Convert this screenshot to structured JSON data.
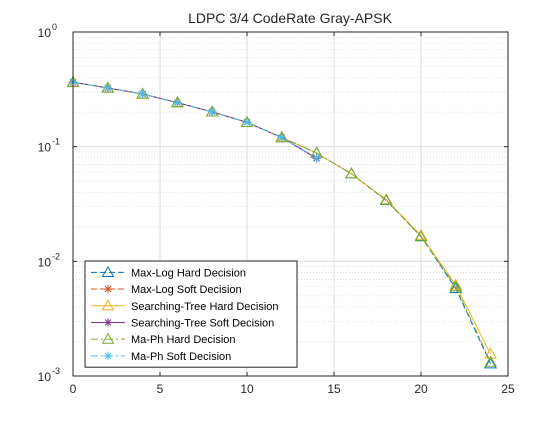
{
  "chart_data": {
    "type": "line",
    "title": "LDPC 3/4 CodeRate Gray-APSK",
    "xlabel": "",
    "ylabel": "",
    "xlim": [
      0,
      25
    ],
    "ylim": [
      0.001,
      1
    ],
    "yscale": "log",
    "grid": true,
    "minor_grid": true,
    "legend_position": "bottom-left",
    "x_ticks": [
      {
        "value": 0,
        "label": "0"
      },
      {
        "value": 5,
        "label": "5"
      },
      {
        "value": 10,
        "label": "10"
      },
      {
        "value": 15,
        "label": "15"
      },
      {
        "value": 20,
        "label": "20"
      },
      {
        "value": 25,
        "label": "25"
      }
    ],
    "y_ticks": [
      {
        "value": 1,
        "base": "10",
        "exp": "0"
      },
      {
        "value": 0.1,
        "base": "10",
        "exp": "-1"
      },
      {
        "value": 0.01,
        "base": "10",
        "exp": "-2"
      },
      {
        "value": 0.001,
        "base": "10",
        "exp": "-3"
      }
    ],
    "series": [
      {
        "name": "Max-Log Hard Decision",
        "color": "#0072BD",
        "line_style": "dash",
        "marker": "triangle",
        "x": [
          0,
          2,
          4,
          6,
          8,
          10,
          12,
          14,
          16,
          18,
          20,
          22,
          24
        ],
        "y": [
          0.365,
          0.325,
          0.288,
          0.242,
          0.201,
          0.163,
          0.12,
          0.088,
          0.058,
          0.034,
          0.0165,
          0.0058,
          0.00128
        ]
      },
      {
        "name": "Max-Log Soft Decision",
        "color": "#D95319",
        "line_style": "dash",
        "marker": "asterisk",
        "x": [
          0,
          2,
          4,
          6,
          8,
          10,
          12,
          14
        ],
        "y": [
          0.365,
          0.325,
          0.288,
          0.242,
          0.201,
          0.163,
          0.12,
          0.08
        ]
      },
      {
        "name": "Searching-Tree Hard Decision",
        "color": "#EDB120",
        "line_style": "solid",
        "marker": "triangle",
        "x": [
          0,
          2,
          4,
          6,
          8,
          10,
          12,
          14,
          16,
          18,
          20,
          22,
          24
        ],
        "y": [
          0.365,
          0.325,
          0.288,
          0.242,
          0.201,
          0.163,
          0.12,
          0.088,
          0.058,
          0.0345,
          0.0168,
          0.0062,
          0.00155
        ]
      },
      {
        "name": "Searching-Tree Soft Decision",
        "color": "#7E2F8E",
        "line_style": "solid",
        "marker": "asterisk",
        "x": [
          0,
          2,
          4,
          6,
          8,
          10,
          12,
          14
        ],
        "y": [
          0.365,
          0.325,
          0.288,
          0.242,
          0.201,
          0.163,
          0.12,
          0.079
        ]
      },
      {
        "name": "Ma-Ph Hard Decision",
        "color": "#77AC30",
        "line_style": "dashdot",
        "marker": "triangle",
        "x": [
          0,
          2,
          4,
          6,
          8,
          10,
          12,
          14,
          16,
          18,
          20,
          22,
          24
        ],
        "y": [
          0.365,
          0.325,
          0.288,
          0.242,
          0.201,
          0.163,
          0.121,
          0.088,
          0.058,
          0.0342,
          0.0164,
          0.006,
          0.00132
        ]
      },
      {
        "name": "Ma-Ph Soft Decision",
        "color": "#4DBEEE",
        "line_style": "dashdot",
        "marker": "asterisk",
        "x": [
          0,
          2,
          4,
          6,
          8,
          10,
          12,
          14
        ],
        "y": [
          0.365,
          0.325,
          0.288,
          0.242,
          0.201,
          0.163,
          0.12,
          0.08
        ]
      }
    ]
  }
}
